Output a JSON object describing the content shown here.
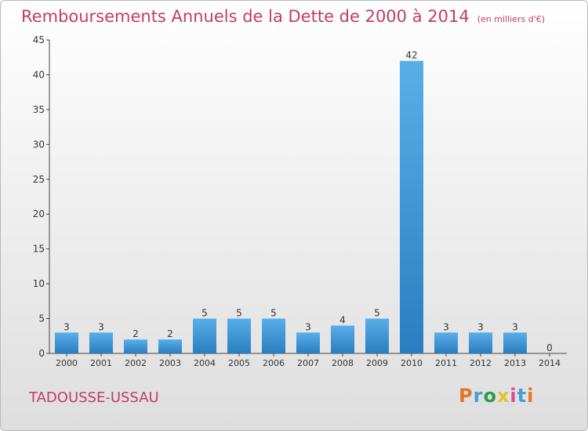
{
  "header": {
    "title": "Remboursements Annuels de la Dette de 2000 à 2014",
    "subtitle": "(en milliers d'€)"
  },
  "footer": {
    "commune": "TADOUSSE-USSAU",
    "logo_text": "Proxiti",
    "logo_letter_colors": [
      "#e8742a",
      "#3f9fd8",
      "#2d9c4e",
      "#e0c42a",
      "#e34a8a",
      "#3f9fd8",
      "#e8742a"
    ]
  },
  "colors": {
    "title": "#c43a6a",
    "bar_light": "#5aaee8",
    "bar_dark": "#2a7ec0",
    "axis": "#444444"
  },
  "chart_data": {
    "type": "bar",
    "title": "Remboursements Annuels de la Dette de 2000 à 2014",
    "categories": [
      "2000",
      "2001",
      "2002",
      "2003",
      "2004",
      "2005",
      "2006",
      "2007",
      "2008",
      "2009",
      "2010",
      "2011",
      "2012",
      "2013",
      "2014"
    ],
    "values": [
      3,
      3,
      2,
      2,
      5,
      5,
      5,
      3,
      4,
      5,
      42,
      3,
      3,
      3,
      0
    ],
    "ylim": [
      0,
      45
    ],
    "yticks": [
      0,
      5,
      10,
      15,
      20,
      25,
      30,
      35,
      40,
      45
    ],
    "grid": false,
    "legend": "none"
  }
}
